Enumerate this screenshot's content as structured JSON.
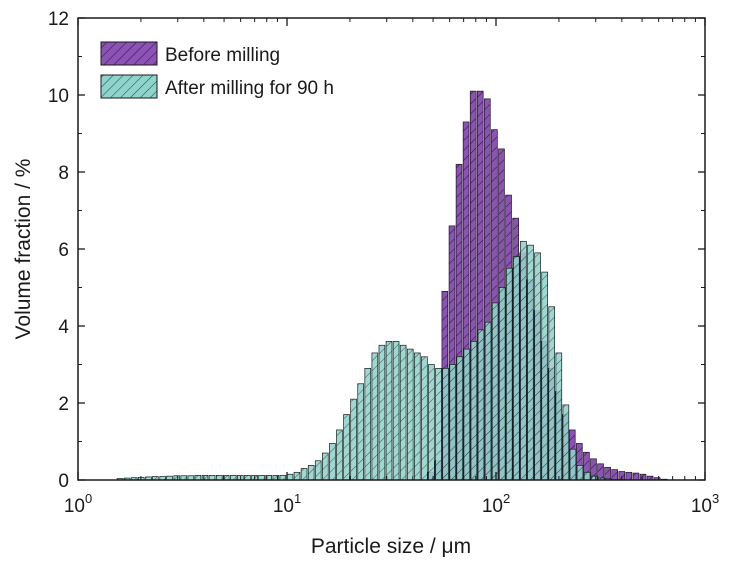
{
  "chart_data": {
    "type": "bar",
    "xlabel": "Particle size / μm",
    "ylabel": "Volume fraction / %",
    "xscale": "log",
    "xlim": [
      1,
      1000
    ],
    "ylim": [
      0,
      12
    ],
    "x_ticks": [
      {
        "base": "10",
        "exp": "0"
      },
      {
        "base": "10",
        "exp": "1"
      },
      {
        "base": "10",
        "exp": "2"
      },
      {
        "base": "10",
        "exp": "3"
      }
    ],
    "y_ticks": [
      "0",
      "2",
      "4",
      "6",
      "8",
      "10",
      "12"
    ],
    "legend_position": "top-left",
    "series": [
      {
        "name": "Before milling",
        "color": "#8c52b6",
        "x": [
          45.3,
          49.0,
          53.0,
          57.3,
          62.0,
          67.0,
          72.4,
          78.3,
          84.6,
          91.5,
          98.9,
          106.9,
          115.6,
          125.0,
          135.1,
          146.1,
          157.9,
          170.7,
          184.6,
          199.5,
          215.7,
          233.2,
          252.1,
          272.5,
          294.6,
          318.5,
          344.3,
          372.2,
          402.4,
          435.0,
          470.3,
          508.4,
          549.6,
          594.2,
          642.3
        ],
        "values": [
          0.0,
          0.2,
          0.5,
          4.9,
          6.6,
          8.2,
          9.3,
          10.1,
          10.1,
          9.9,
          9.1,
          8.6,
          7.4,
          6.8,
          5.9,
          5.2,
          4.4,
          3.6,
          2.9,
          2.3,
          1.7,
          1.3,
          0.95,
          0.72,
          0.55,
          0.42,
          0.33,
          0.27,
          0.22,
          0.2,
          0.18,
          0.15,
          0.1,
          0.06,
          0.02
        ]
      },
      {
        "name": "After milling for 90 h",
        "color": "#8fd4cc",
        "x": [
          1.6,
          1.73,
          1.87,
          2.02,
          2.19,
          2.36,
          2.56,
          2.76,
          2.99,
          3.23,
          3.49,
          3.77,
          4.08,
          4.41,
          4.77,
          5.15,
          5.57,
          6.02,
          6.51,
          7.04,
          7.61,
          8.23,
          8.9,
          9.62,
          10.4,
          11.24,
          12.15,
          13.14,
          14.2,
          15.35,
          16.6,
          17.94,
          19.4,
          20.97,
          22.67,
          24.51,
          26.5,
          28.65,
          30.97,
          33.48,
          36.19,
          39.13,
          42.3,
          45.73,
          49.44,
          53.45,
          57.78,
          62.47,
          67.53,
          73.0,
          78.92,
          85.32,
          92.24,
          99.72,
          107.8,
          116.5,
          126.0,
          136.2,
          147.2,
          159.2,
          172.1,
          186.0,
          201.1,
          217.4,
          235.0,
          254.1,
          274.7,
          296.9,
          321.0,
          347.0,
          375.2,
          405.6
        ],
        "values": [
          0.04,
          0.05,
          0.06,
          0.07,
          0.08,
          0.09,
          0.09,
          0.1,
          0.11,
          0.11,
          0.11,
          0.12,
          0.12,
          0.12,
          0.12,
          0.12,
          0.12,
          0.12,
          0.12,
          0.12,
          0.12,
          0.12,
          0.12,
          0.12,
          0.15,
          0.2,
          0.3,
          0.38,
          0.5,
          0.7,
          0.95,
          1.3,
          1.7,
          2.1,
          2.5,
          2.9,
          3.3,
          3.5,
          3.6,
          3.6,
          3.5,
          3.4,
          3.3,
          3.2,
          3.0,
          2.9,
          2.9,
          3.0,
          3.2,
          3.4,
          3.6,
          3.9,
          4.1,
          4.6,
          5.0,
          5.5,
          5.8,
          6.2,
          6.1,
          5.9,
          5.4,
          4.5,
          3.3,
          1.95,
          0.8,
          0.38,
          0.2,
          0.1,
          0.05,
          0.03,
          0.01,
          0.01
        ]
      }
    ]
  }
}
